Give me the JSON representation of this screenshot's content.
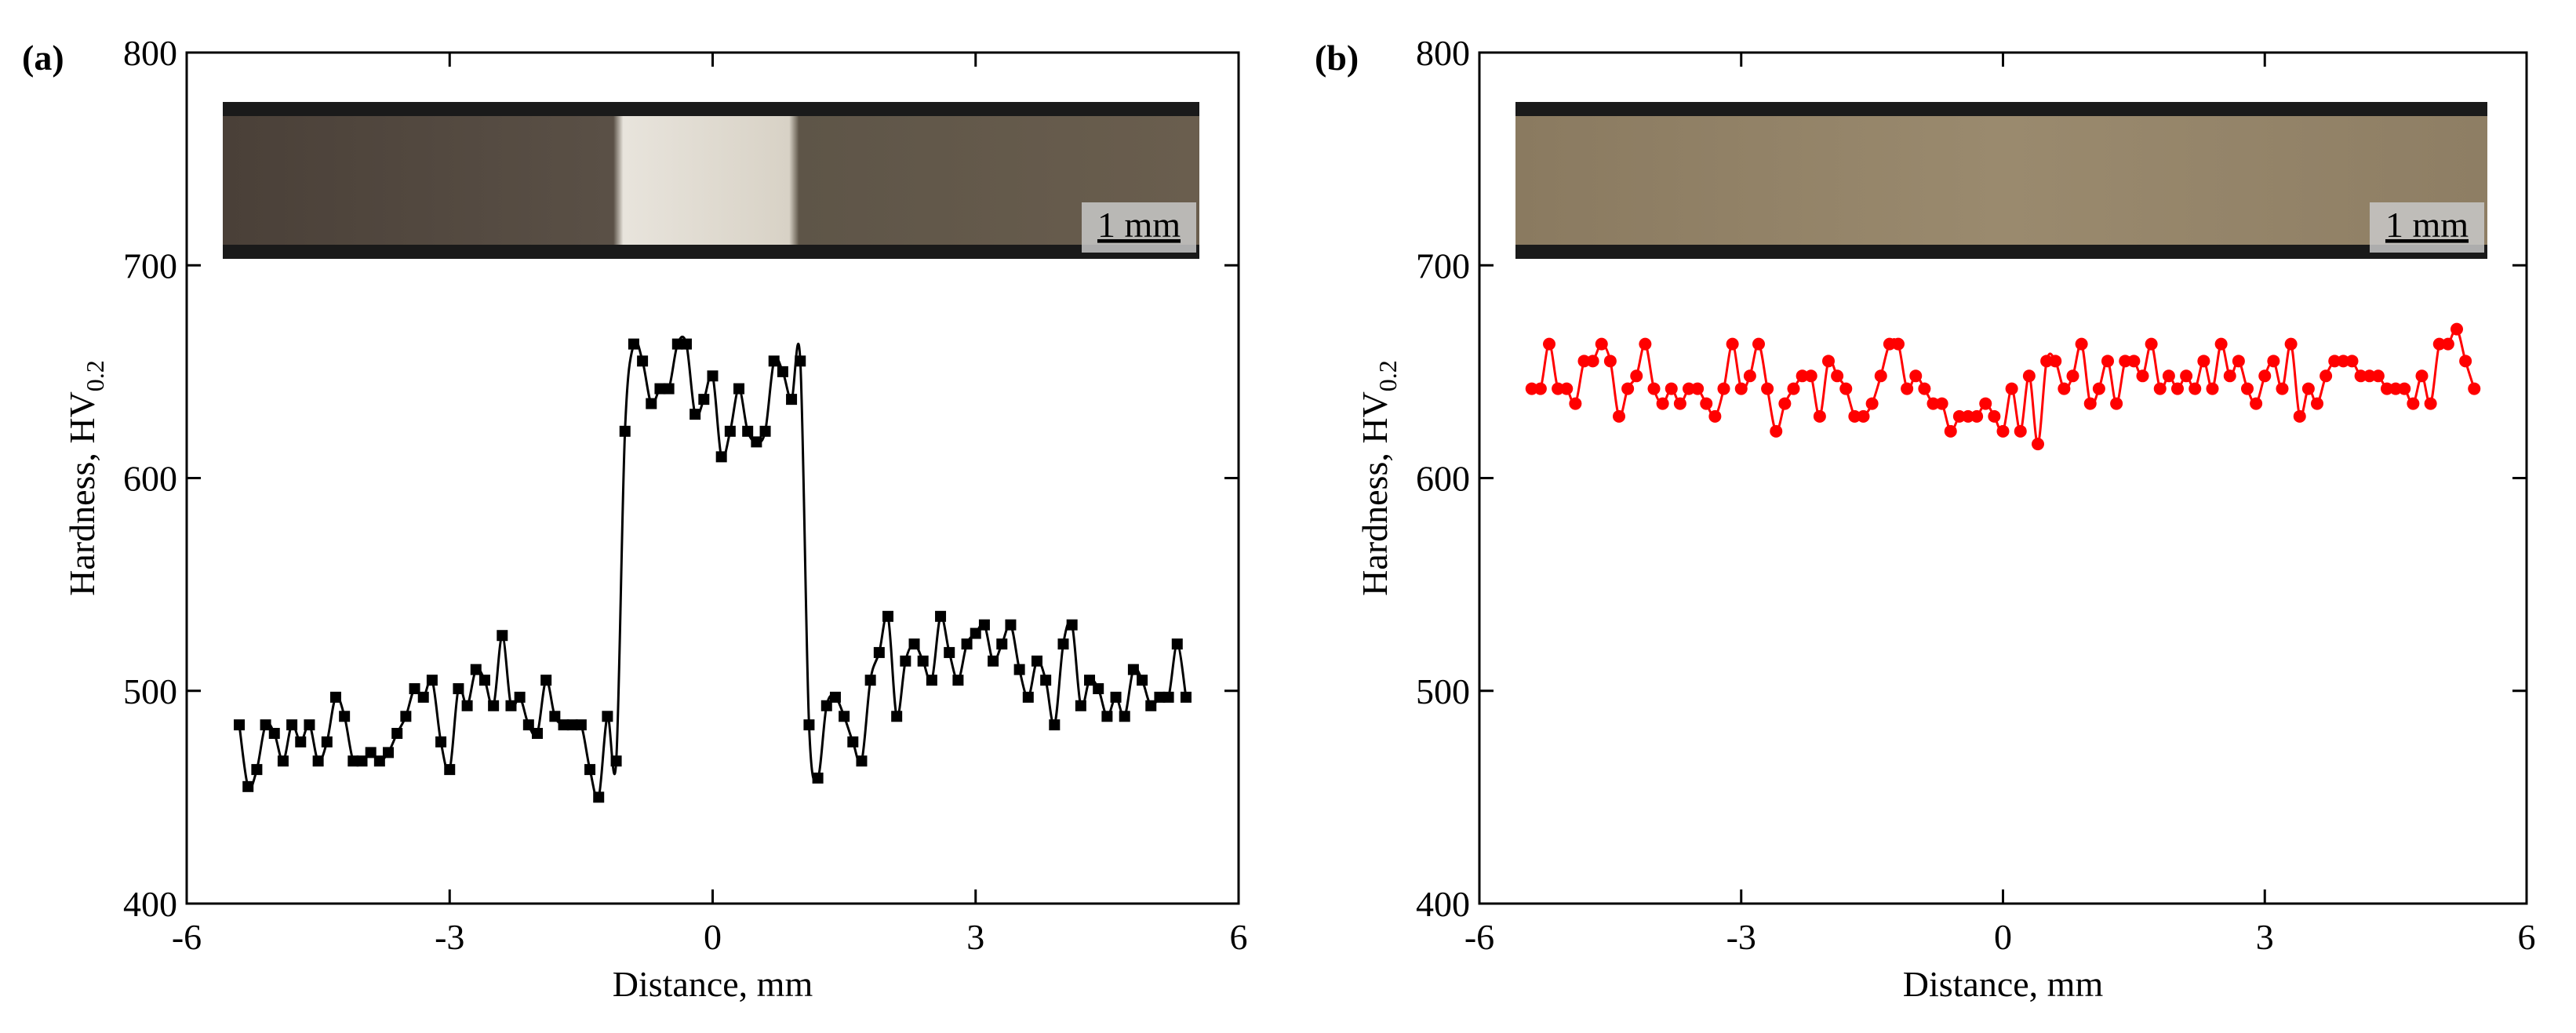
{
  "chart_data": [
    {
      "type": "scatter",
      "title": "(a)",
      "xlabel": "Distance, mm",
      "ylabel": "Hardness, HV",
      "ylabel_sub": "0.2",
      "annotation": "1 mm",
      "xlim": [
        -6,
        6
      ],
      "xticks": [
        -6,
        -3,
        0,
        3,
        6
      ],
      "ylim": [
        400,
        800
      ],
      "yticks": [
        400,
        500,
        600,
        700,
        800
      ],
      "marker": "square",
      "color": "#000000",
      "x": [
        -5.4,
        -5.3,
        -5.2,
        -5.1,
        -5.0,
        -4.9,
        -4.8,
        -4.7,
        -4.6,
        -4.5,
        -4.4,
        -4.3,
        -4.2,
        -4.1,
        -4.0,
        -3.9,
        -3.8,
        -3.7,
        -3.6,
        -3.5,
        -3.4,
        -3.3,
        -3.2,
        -3.1,
        -3.0,
        -2.9,
        -2.8,
        -2.7,
        -2.6,
        -2.5,
        -2.4,
        -2.3,
        -2.2,
        -2.1,
        -2.0,
        -1.9,
        -1.8,
        -1.7,
        -1.6,
        -1.5,
        -1.4,
        -1.3,
        -1.2,
        -1.1,
        -1.0,
        -0.9,
        -0.8,
        -0.7,
        -0.6,
        -0.5,
        -0.4,
        -0.3,
        -0.2,
        -0.1,
        0,
        0.1,
        0.2,
        0.3,
        0.4,
        0.5,
        0.6,
        0.7,
        0.8,
        0.9,
        1.0,
        1.1,
        1.2,
        1.3,
        1.4,
        1.5,
        1.6,
        1.7,
        1.8,
        1.9,
        2.0,
        2.1,
        2.2,
        2.3,
        2.4,
        2.5,
        2.6,
        2.7,
        2.8,
        2.9,
        3.0,
        3.1,
        3.2,
        3.3,
        3.4,
        3.5,
        3.6,
        3.7,
        3.8,
        3.9,
        4.0,
        4.1,
        4.2,
        4.3,
        4.4,
        4.5,
        4.6,
        4.7,
        4.8,
        4.9,
        5.0,
        5.1,
        5.2,
        5.3,
        5.4
      ],
      "values": [
        484,
        455,
        463,
        484,
        480,
        467,
        484,
        476,
        484,
        467,
        476,
        497,
        488,
        467,
        467,
        471,
        467,
        471,
        480,
        488,
        501,
        497,
        505,
        476,
        463,
        501,
        493,
        510,
        505,
        493,
        526,
        493,
        497,
        484,
        480,
        505,
        488,
        484,
        484,
        484,
        463,
        450,
        488,
        467,
        622,
        663,
        655,
        635,
        642,
        642,
        663,
        663,
        630,
        637,
        648,
        610,
        622,
        642,
        622,
        617,
        622,
        655,
        650,
        637,
        655,
        484,
        459,
        493,
        497,
        488,
        476,
        467,
        505,
        518,
        535,
        488,
        514,
        522,
        514,
        505,
        535,
        518,
        505,
        522,
        527,
        531,
        514,
        522,
        531,
        510,
        497,
        514,
        505,
        484,
        522,
        531,
        493,
        505,
        501,
        488,
        497,
        488,
        510,
        505,
        493,
        497,
        497,
        522,
        497
      ]
    },
    {
      "type": "scatter",
      "title": "(b)",
      "xlabel": "Distance, mm",
      "ylabel": "Hardness, HV",
      "ylabel_sub": "0.2",
      "annotation": "1 mm",
      "xlim": [
        -6,
        6
      ],
      "xticks": [
        -6,
        -3,
        0,
        3,
        6
      ],
      "ylim": [
        400,
        800
      ],
      "yticks": [
        400,
        500,
        600,
        700,
        800
      ],
      "marker": "circle",
      "color": "#ff0000",
      "x": [
        -5.4,
        -5.3,
        -5.2,
        -5.1,
        -5.0,
        -4.9,
        -4.8,
        -4.7,
        -4.6,
        -4.5,
        -4.4,
        -4.3,
        -4.2,
        -4.1,
        -4.0,
        -3.9,
        -3.8,
        -3.7,
        -3.6,
        -3.5,
        -3.4,
        -3.3,
        -3.2,
        -3.1,
        -3.0,
        -2.9,
        -2.8,
        -2.7,
        -2.6,
        -2.5,
        -2.4,
        -2.3,
        -2.2,
        -2.1,
        -2.0,
        -1.9,
        -1.8,
        -1.7,
        -1.6,
        -1.5,
        -1.4,
        -1.3,
        -1.2,
        -1.1,
        -1.0,
        -0.9,
        -0.8,
        -0.7,
        -0.6,
        -0.5,
        -0.4,
        -0.3,
        -0.2,
        -0.1,
        0,
        0.1,
        0.2,
        0.3,
        0.4,
        0.5,
        0.6,
        0.7,
        0.8,
        0.9,
        1.0,
        1.1,
        1.2,
        1.3,
        1.4,
        1.5,
        1.6,
        1.7,
        1.8,
        1.9,
        2.0,
        2.1,
        2.2,
        2.3,
        2.4,
        2.5,
        2.6,
        2.7,
        2.8,
        2.9,
        3.0,
        3.1,
        3.2,
        3.3,
        3.4,
        3.5,
        3.6,
        3.7,
        3.8,
        3.9,
        4.0,
        4.1,
        4.2,
        4.3,
        4.4,
        4.5,
        4.6,
        4.7,
        4.8,
        4.9,
        5.0,
        5.1,
        5.2,
        5.3,
        5.4
      ],
      "values": [
        642,
        642,
        663,
        642,
        642,
        635,
        655,
        655,
        663,
        655,
        629,
        642,
        648,
        663,
        642,
        635,
        642,
        635,
        642,
        642,
        635,
        629,
        642,
        663,
        642,
        648,
        663,
        642,
        622,
        635,
        642,
        648,
        648,
        629,
        655,
        648,
        642,
        629,
        629,
        635,
        648,
        663,
        663,
        642,
        648,
        642,
        635,
        635,
        622,
        629,
        629,
        629,
        635,
        629,
        622,
        642,
        622,
        648,
        616,
        655,
        655,
        642,
        648,
        663,
        635,
        642,
        655,
        635,
        655,
        655,
        648,
        663,
        642,
        648,
        642,
        648,
        642,
        655,
        642,
        663,
        648,
        655,
        642,
        635,
        648,
        655,
        642,
        663,
        629,
        642,
        635,
        648,
        655,
        655,
        655,
        648,
        648,
        648,
        642,
        642,
        642,
        635,
        648,
        635,
        663,
        663,
        670,
        655,
        642
      ]
    }
  ]
}
